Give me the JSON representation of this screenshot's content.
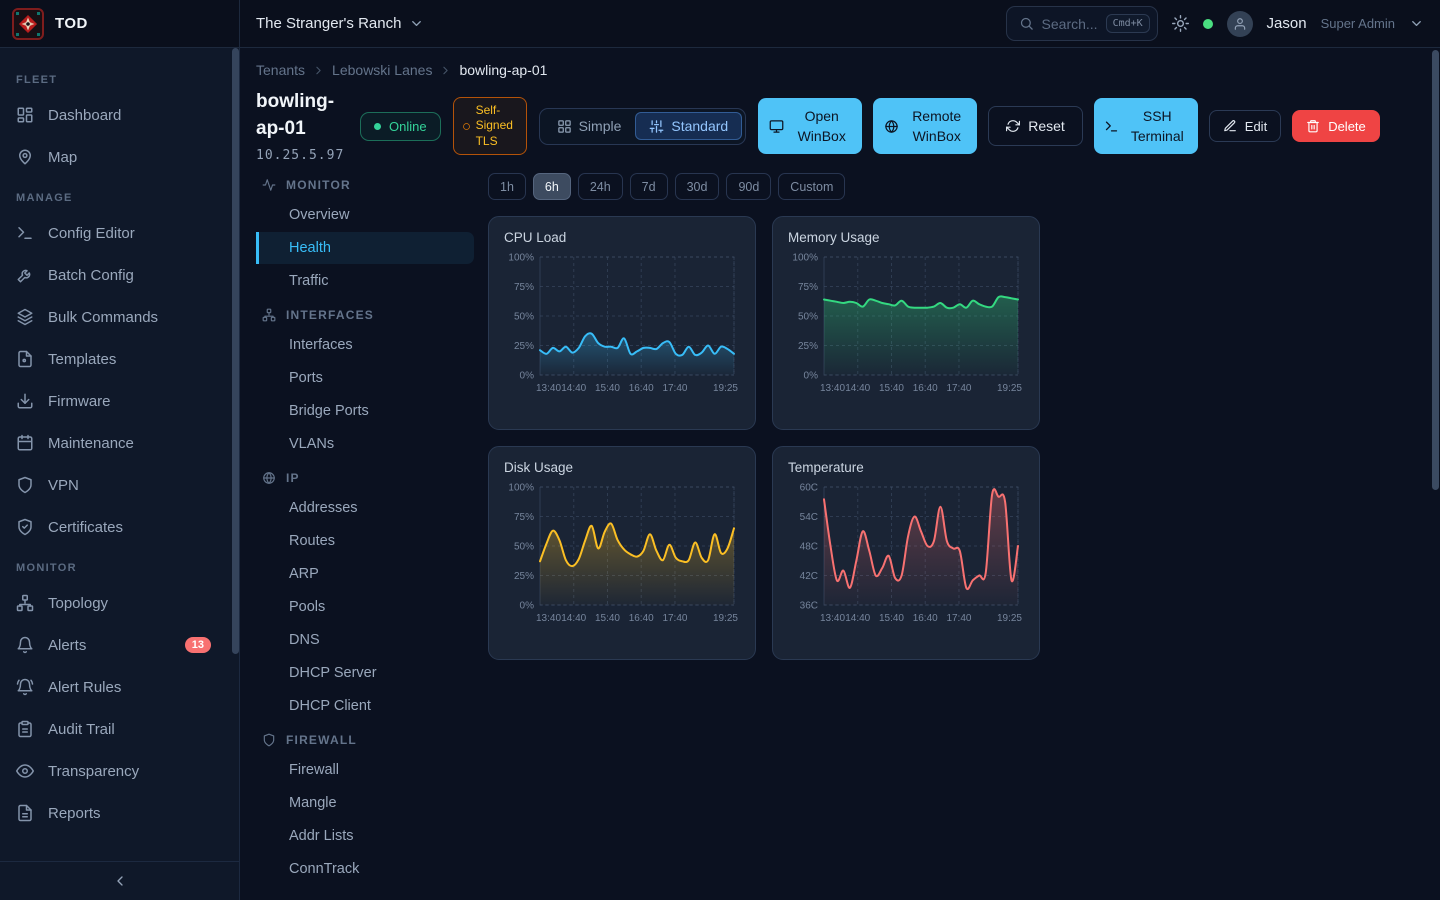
{
  "app": {
    "title": "TOD"
  },
  "topbar": {
    "tenant": "The Stranger's Ranch",
    "search_placeholder": "Search...",
    "search_kbd": "Cmd+K",
    "user_name": "Jason",
    "user_role": "Super Admin"
  },
  "sidebar": {
    "sections": [
      {
        "label": "FLEET",
        "items": [
          {
            "label": "Dashboard",
            "icon": "dashboard"
          },
          {
            "label": "Map",
            "icon": "map-pin"
          }
        ]
      },
      {
        "label": "MANAGE",
        "items": [
          {
            "label": "Config Editor",
            "icon": "terminal"
          },
          {
            "label": "Batch Config",
            "icon": "wrench"
          },
          {
            "label": "Bulk Commands",
            "icon": "layers"
          },
          {
            "label": "Templates",
            "icon": "file"
          },
          {
            "label": "Firmware",
            "icon": "download"
          },
          {
            "label": "Maintenance",
            "icon": "calendar"
          },
          {
            "label": "VPN",
            "icon": "shield"
          },
          {
            "label": "Certificates",
            "icon": "shield-check"
          }
        ]
      },
      {
        "label": "MONITOR",
        "items": [
          {
            "label": "Topology",
            "icon": "topology"
          },
          {
            "label": "Alerts",
            "icon": "bell",
            "badge": "13"
          },
          {
            "label": "Alert Rules",
            "icon": "bell-ring"
          },
          {
            "label": "Audit Trail",
            "icon": "clipboard"
          },
          {
            "label": "Transparency",
            "icon": "eye"
          },
          {
            "label": "Reports",
            "icon": "file-text"
          }
        ]
      }
    ]
  },
  "breadcrumb": [
    "Tenants",
    "Lebowski Lanes",
    "bowling-ap-01"
  ],
  "device": {
    "name": "bowling-ap-01",
    "status": "Online",
    "ip": "10.25.5.97",
    "tls_badge": "Self-Signed TLS"
  },
  "mode_toggle": [
    {
      "label": "Simple",
      "icon": "grid",
      "active": false
    },
    {
      "label": "Standard",
      "icon": "sliders",
      "active": true
    }
  ],
  "actions": [
    {
      "label": "Open WinBox",
      "icon": "monitor",
      "style": "primary"
    },
    {
      "label": "Remote WinBox",
      "icon": "globe",
      "style": "primary"
    },
    {
      "label": "Reset",
      "icon": "refresh",
      "style": "ghost-lg"
    },
    {
      "label": "SSH Terminal",
      "icon": "terminal",
      "style": "primary"
    },
    {
      "label": "Edit",
      "icon": "pencil",
      "style": "ghost-sm"
    },
    {
      "label": "Delete",
      "icon": "trash",
      "style": "danger"
    }
  ],
  "subnav": {
    "sections": [
      {
        "label": "MONITOR",
        "icon": "activity",
        "items": [
          {
            "label": "Overview"
          },
          {
            "label": "Health",
            "active": true
          },
          {
            "label": "Traffic"
          }
        ]
      },
      {
        "label": "INTERFACES",
        "icon": "topology",
        "items": [
          {
            "label": "Interfaces"
          },
          {
            "label": "Ports"
          },
          {
            "label": "Bridge Ports"
          },
          {
            "label": "VLANs"
          }
        ]
      },
      {
        "label": "IP",
        "icon": "globe",
        "items": [
          {
            "label": "Addresses"
          },
          {
            "label": "Routes"
          },
          {
            "label": "ARP"
          },
          {
            "label": "Pools"
          },
          {
            "label": "DNS"
          },
          {
            "label": "DHCP Server"
          },
          {
            "label": "DHCP Client"
          }
        ]
      },
      {
        "label": "FIREWALL",
        "icon": "shield",
        "items": [
          {
            "label": "Firewall"
          },
          {
            "label": "Mangle"
          },
          {
            "label": "Addr Lists"
          },
          {
            "label": "ConnTrack"
          }
        ]
      }
    ]
  },
  "time_ranges": {
    "options": [
      "1h",
      "6h",
      "24h",
      "7d",
      "30d",
      "90d",
      "Custom"
    ],
    "active": "6h"
  },
  "chart_data": [
    {
      "type": "line",
      "title": "CPU Load",
      "color": "#38bdf8",
      "unit": "%",
      "ylim": [
        0,
        100
      ],
      "ytick_labels": [
        "100%",
        "75%",
        "50%",
        "25%",
        "0%"
      ],
      "x_labels": [
        "13:40",
        "14:40",
        "15:40",
        "16:40",
        "17:40",
        "19:25"
      ],
      "x_minutes": [
        0,
        60,
        120,
        180,
        240,
        345
      ],
      "values": [
        21,
        18,
        23,
        20,
        24,
        19,
        23,
        33,
        35,
        27,
        24,
        24,
        23,
        31,
        18,
        20,
        23,
        23,
        22,
        27,
        28,
        18,
        17,
        24,
        17,
        19,
        25,
        18,
        24,
        22,
        18
      ]
    },
    {
      "type": "line",
      "title": "Memory Usage",
      "color": "#34d981",
      "unit": "%",
      "ylim": [
        0,
        100
      ],
      "ytick_labels": [
        "100%",
        "75%",
        "50%",
        "25%",
        "0%"
      ],
      "x_labels": [
        "13:40",
        "14:40",
        "15:40",
        "16:40",
        "17:40",
        "19:25"
      ],
      "x_minutes": [
        0,
        60,
        120,
        180,
        240,
        345
      ],
      "values": [
        64,
        63,
        62,
        61,
        62,
        61,
        58,
        64,
        63,
        61,
        60,
        59,
        63,
        58,
        57,
        57,
        57,
        58,
        61,
        57,
        57,
        60,
        57,
        63,
        60,
        58,
        58,
        66,
        66,
        65,
        64
      ]
    },
    {
      "type": "line",
      "title": "Disk Usage",
      "color": "#fbbf24",
      "unit": "%",
      "ylim": [
        0,
        100
      ],
      "ytick_labels": [
        "100%",
        "75%",
        "50%",
        "25%",
        "0%"
      ],
      "x_labels": [
        "13:40",
        "14:40",
        "15:40",
        "16:40",
        "17:40",
        "19:25"
      ],
      "x_minutes": [
        0,
        60,
        120,
        180,
        240,
        345
      ],
      "values": [
        37,
        52,
        63,
        55,
        38,
        33,
        39,
        55,
        67,
        48,
        62,
        69,
        55,
        47,
        43,
        41,
        46,
        60,
        46,
        38,
        51,
        40,
        37,
        38,
        53,
        40,
        38,
        60,
        44,
        48,
        65
      ]
    },
    {
      "type": "line",
      "title": "Temperature",
      "color": "#f87171",
      "unit": "C",
      "ylim": [
        36,
        60
      ],
      "ytick_labels": [
        "60C",
        "54C",
        "48C",
        "42C",
        "36C"
      ],
      "x_labels": [
        "13:40",
        "14:40",
        "15:40",
        "16:40",
        "17:40",
        "19:25"
      ],
      "x_minutes": [
        0,
        60,
        120,
        180,
        240,
        345
      ],
      "values": [
        57.5,
        48,
        41,
        43,
        39.5,
        45,
        51,
        47,
        42,
        43.5,
        46,
        41.5,
        42,
        50,
        54,
        51,
        48,
        49,
        56,
        49,
        47.5,
        47,
        39.5,
        41,
        42,
        42.5,
        58.5,
        58,
        57,
        41,
        48
      ]
    }
  ],
  "colors": {
    "accent_blue": "#38bdf8",
    "button_blue": "#4fc3f7",
    "online_green": "#34d399",
    "warning_amber": "#fbbf24",
    "danger_red": "#ef4444",
    "badge_red": "#f87171",
    "card_bg": "#1a2435"
  }
}
